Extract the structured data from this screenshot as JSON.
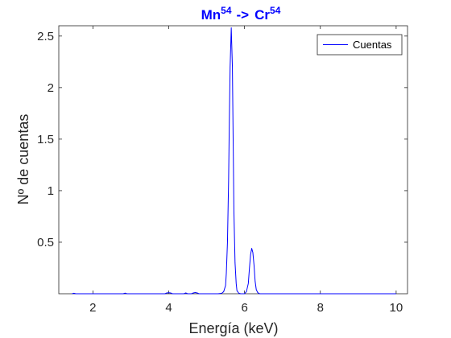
{
  "chart_data": {
    "type": "line",
    "title": {
      "part1": "Mn",
      "sup1": "54",
      "arrow": "->",
      "part2": "Cr",
      "sup2": "54"
    },
    "title_color": "#0000ff",
    "xlabel": "Energía (keV)",
    "ylabel": "Nº de cuentas",
    "xlim": [
      1.1,
      10.3
    ],
    "ylim": [
      0,
      2.6
    ],
    "xticks": [
      2,
      4,
      6,
      8,
      10
    ],
    "yticks": [
      0.5,
      1,
      1.5,
      2,
      2.5
    ],
    "xtick_labels": [
      "2",
      "4",
      "6",
      "8",
      "10"
    ],
    "ytick_labels": [
      "0.5",
      "1",
      "1.5",
      "2",
      "2.5"
    ],
    "grid": false,
    "legend_position": "top-right",
    "series": [
      {
        "name": "Cuentas",
        "color": "#0000ff",
        "x": [
          1.45,
          1.5,
          1.55,
          2.8,
          2.85,
          2.9,
          3.9,
          3.95,
          4.0,
          4.05,
          4.1,
          4.4,
          4.45,
          4.5,
          4.6,
          4.65,
          4.7,
          4.75,
          4.8,
          5.3,
          5.4,
          5.45,
          5.5,
          5.52,
          5.55,
          5.58,
          5.6,
          5.62,
          5.65,
          5.68,
          5.7,
          5.72,
          5.75,
          5.78,
          5.8,
          5.85,
          5.9,
          6.0,
          6.05,
          6.1,
          6.13,
          6.16,
          6.19,
          6.22,
          6.25,
          6.28,
          6.31,
          6.35,
          6.4,
          6.5,
          7.0,
          8.0,
          9.0,
          10.0
        ],
        "y": [
          0.0,
          0.005,
          0.0,
          0.0,
          0.006,
          0.0,
          0.0,
          0.008,
          0.01,
          0.008,
          0.0,
          0.0,
          0.008,
          0.0,
          0.0,
          0.008,
          0.012,
          0.008,
          0.0,
          0.0,
          0.005,
          0.02,
          0.08,
          0.2,
          0.5,
          1.1,
          1.7,
          2.2,
          2.58,
          2.2,
          1.5,
          0.8,
          0.3,
          0.1,
          0.03,
          0.005,
          0.0,
          0.0,
          0.02,
          0.1,
          0.25,
          0.38,
          0.44,
          0.4,
          0.28,
          0.12,
          0.04,
          0.01,
          0.0,
          0.0,
          0.0,
          0.0,
          0.0,
          0.0
        ]
      }
    ]
  }
}
